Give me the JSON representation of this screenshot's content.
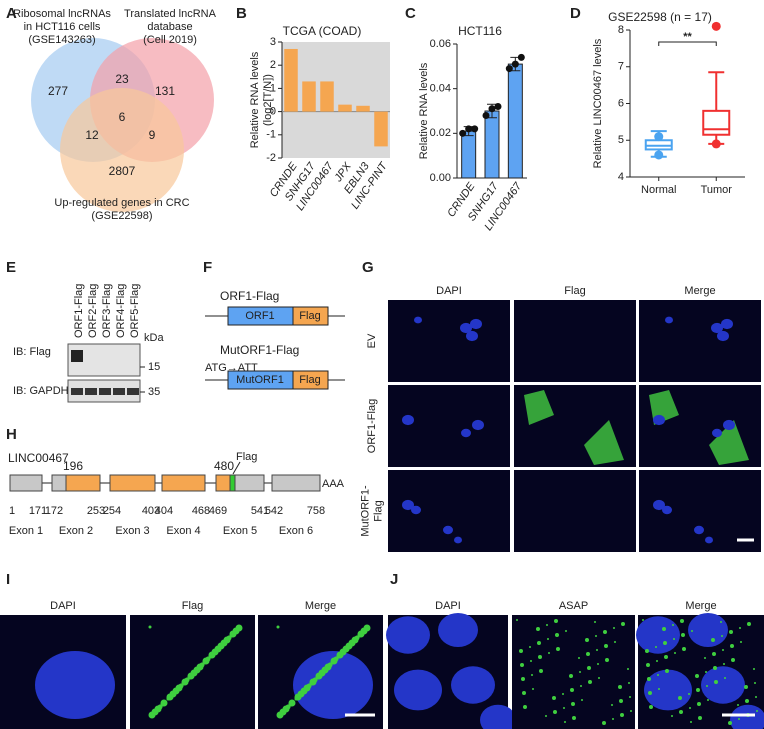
{
  "venn": {
    "label": "A",
    "set_labels": [
      [
        "Ribosomal lncRNAs",
        "in HCT116 cells",
        "(GSE143263)"
      ],
      [
        "Translated lncRNA",
        "database",
        "(Cell 2019)"
      ],
      [
        "Up-regulated genes in CRC",
        "(GSE22598)"
      ]
    ],
    "counts": [
      "277",
      "23",
      "131",
      "6",
      "12",
      "9",
      "2807"
    ]
  },
  "chart_data": [
    {
      "type": "bar",
      "label": "B",
      "title": "TCGA (COAD)",
      "y_label": [
        "Relative RNA levels",
        "(log2[T/N])"
      ],
      "categories": [
        "CRNDE",
        "SNHG17",
        "LINC00467",
        "JPX",
        "EBLN3",
        "LINC-PINT"
      ],
      "values": [
        2.7,
        1.3,
        1.3,
        0.3,
        0.25,
        -1.5
      ],
      "color": "#f5a650",
      "background": "#d9d9d9",
      "ylim": [
        -2,
        3
      ],
      "yticks": [
        -2,
        -1,
        0,
        1,
        2,
        3
      ]
    },
    {
      "type": "bar",
      "label": "C",
      "title": "HCT116",
      "y_label": [
        "Relative RNA levels"
      ],
      "categories": [
        "CRNDE",
        "SNHG17",
        "LINC00467"
      ],
      "values": [
        0.021,
        0.03,
        0.051
      ],
      "errors": [
        0.002,
        0.003,
        0.003
      ],
      "points": [
        [
          0.02,
          0.022,
          0.022
        ],
        [
          0.028,
          0.031,
          0.032
        ],
        [
          0.049,
          0.051,
          0.054
        ]
      ],
      "color": "#5ea3f2",
      "ylim": [
        0,
        0.06
      ],
      "yticks": [
        {
          "value": 0,
          "label": "0.00"
        },
        0.02,
        0.04,
        0.06
      ]
    },
    {
      "type": "box",
      "label": "D",
      "title": "GSE22598 (n = 17)",
      "y_label": [
        "Relative LINC00467 levels"
      ],
      "categories": [
        "Normal",
        "Tumor"
      ],
      "colors": [
        "#4aa3f0",
        "#f03030"
      ],
      "whisker_low": [
        4.55,
        4.9
      ],
      "q1": [
        4.75,
        5.15
      ],
      "median": [
        4.85,
        5.3
      ],
      "q3": [
        5.0,
        5.8
      ],
      "whisker_high": [
        5.25,
        6.85
      ],
      "points": [
        [
          5.1,
          4.6
        ],
        [
          8.1,
          4.9
        ]
      ],
      "significance": "**",
      "ylim": [
        4,
        8
      ],
      "yticks": [
        4,
        5,
        6,
        7,
        8
      ]
    }
  ],
  "blot": {
    "label": "E",
    "lanes": [
      "ORF1-Flag",
      "ORF2-Flag",
      "ORF3-Flag",
      "ORF4-Flag",
      "ORF5-Flag"
    ],
    "unit": "kDa",
    "rows": [
      {
        "name": "IB: Flag",
        "marker": "15"
      },
      {
        "name": "IB: GAPDH",
        "marker": "35"
      }
    ]
  },
  "constructs": {
    "label": "F",
    "items": [
      {
        "name": "ORF1-Flag",
        "orf": "ORF1",
        "tag": "Flag"
      },
      {
        "name": "MutORF1-Flag",
        "mutation": "ATG→ATT",
        "orf": "MutORF1",
        "tag": "Flag"
      }
    ]
  },
  "imaging_g": {
    "label": "G",
    "columns": [
      "DAPI",
      "Flag",
      "Merge"
    ],
    "rows": [
      [
        "EV"
      ],
      [
        "ORF1-Flag"
      ],
      [
        "MutORF1-",
        "Flag"
      ]
    ]
  },
  "gene_map": {
    "label": "H",
    "gene": "LINC00467",
    "orf_start": "196",
    "orf_end": "480",
    "tag": "Flag",
    "tail": "AAA",
    "exons": [
      {
        "start": "1",
        "end": "171",
        "name": "Exon 1"
      },
      {
        "start": "172",
        "end": "253",
        "name": "Exon 2"
      },
      {
        "start": "254",
        "end": "403",
        "name": "Exon 3"
      },
      {
        "start": "404",
        "end": "468",
        "name": "Exon 4"
      },
      {
        "start": "469",
        "end": "541",
        "name": "Exon 5"
      },
      {
        "start": "542",
        "end": "758",
        "name": "Exon 6"
      }
    ]
  },
  "imaging_i": {
    "label": "I",
    "columns": [
      "DAPI",
      "Flag",
      "Merge"
    ]
  },
  "imaging_j": {
    "label": "J",
    "columns": [
      "DAPI",
      "ASAP",
      "Merge"
    ]
  }
}
